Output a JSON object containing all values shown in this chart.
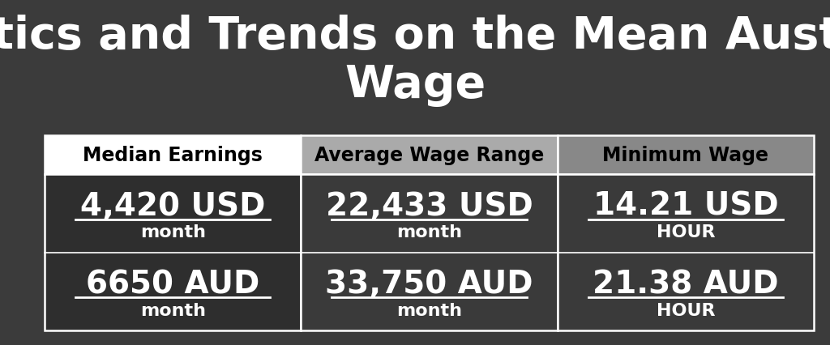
{
  "title": "Statistics and Trends on the Mean Australian\nWage",
  "bg_color": "#3b3b3b",
  "title_color": "#ffffff",
  "title_fontsize": 40,
  "columns": [
    {
      "header": "Median Earnings",
      "header_bg": "#ffffff",
      "header_text_color": "#000000",
      "cell_bg": "#2e2e2e",
      "entries": [
        {
          "value": "4,420 USD",
          "label": "month"
        },
        {
          "value": "6650 AUD",
          "label": "month"
        }
      ]
    },
    {
      "header": "Average Wage Range",
      "header_bg": "#aaaaaa",
      "header_text_color": "#000000",
      "cell_bg": "#3a3a3a",
      "entries": [
        {
          "value": "22,433 USD",
          "label": "month"
        },
        {
          "value": "33,750 AUD",
          "label": "month"
        }
      ]
    },
    {
      "header": "Minimum Wage",
      "header_bg": "#888888",
      "header_text_color": "#000000",
      "cell_bg": "#3a3a3a",
      "entries": [
        {
          "value": "14.21 USD",
          "label": "HOUR"
        },
        {
          "value": "21.38 AUD",
          "label": "HOUR"
        }
      ]
    }
  ],
  "border_color": "#ffffff",
  "header_fontsize": 17,
  "value_fontsize": 28,
  "label_fontsize": 16
}
